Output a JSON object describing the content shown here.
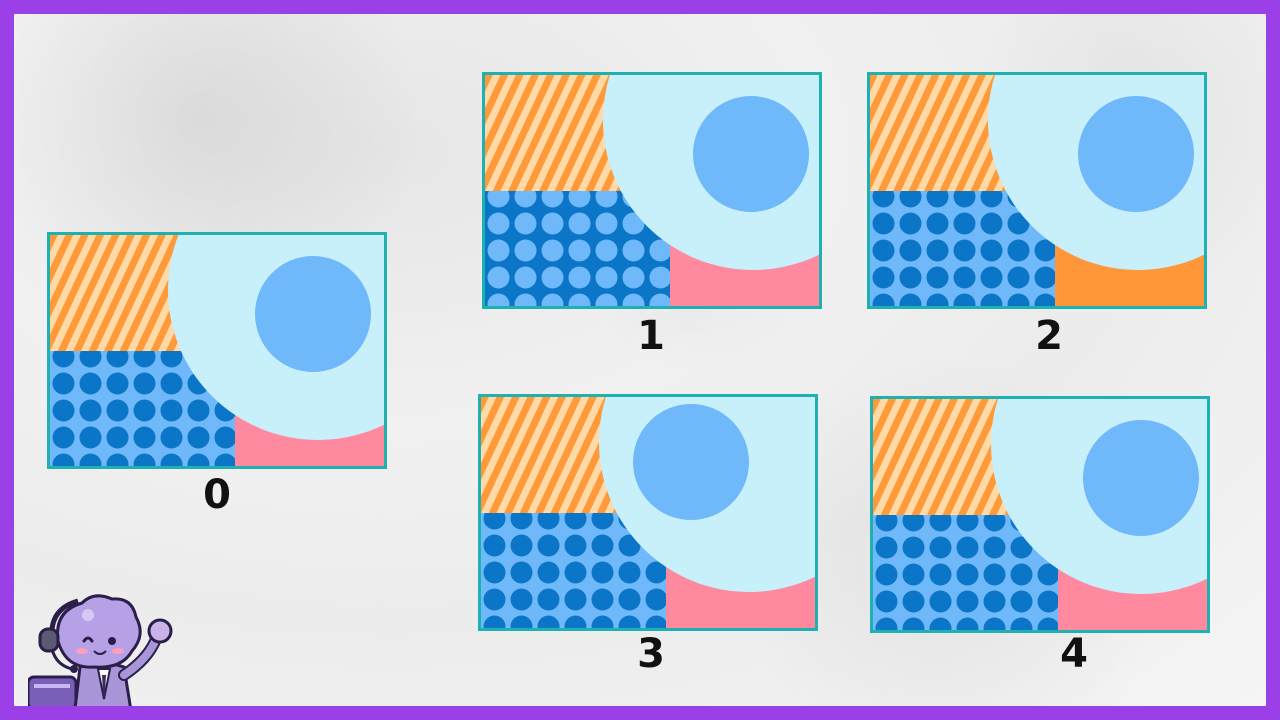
{
  "puzzle": {
    "options": [
      {
        "label": "0",
        "pink_fill": "#ff8aa0",
        "circle_pos": "right"
      },
      {
        "label": "1",
        "pink_fill": "#ff8aa0",
        "circle_pos": "right",
        "dots_variant": "inverted"
      },
      {
        "label": "2",
        "pink_fill": "#ff963a",
        "circle_pos": "right"
      },
      {
        "label": "3",
        "pink_fill": "#ff8aa0",
        "circle_pos": "left"
      },
      {
        "label": "4",
        "pink_fill": "#ff8aa0",
        "circle_pos": "right-lower"
      }
    ]
  },
  "colors": {
    "frame": "#9b3fe6",
    "border": "#1fb1b1",
    "light_blue": "#c8f0fb",
    "mid_blue": "#6fb8f9",
    "dark_blue": "#0b76c8",
    "stripe_orange": "#ff9a3a",
    "stripe_cream": "#ffd9a6"
  }
}
